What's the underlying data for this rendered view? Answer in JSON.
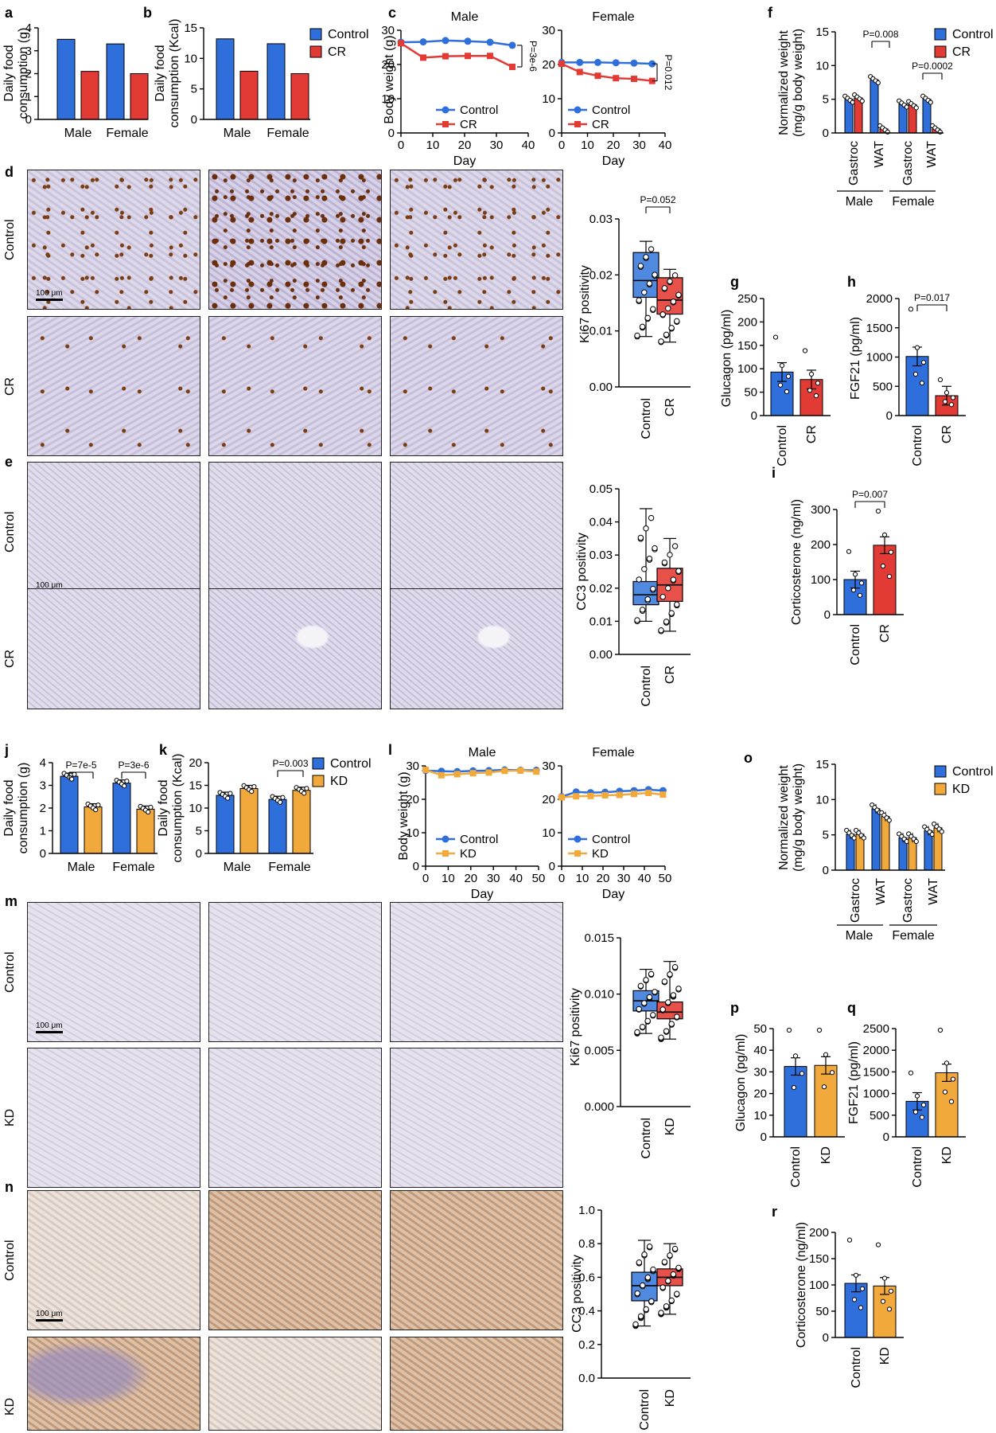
{
  "colors": {
    "control": "#2f6fdb",
    "cr": "#e23b36",
    "kd": "#f2a93b",
    "box_ctrl": "#4f8ae0",
    "box_cr": "#e8504a"
  },
  "panel_letters": [
    "a",
    "b",
    "c",
    "d",
    "e",
    "f",
    "g",
    "h",
    "i",
    "j",
    "k",
    "l",
    "m",
    "n",
    "o",
    "p",
    "q",
    "r"
  ],
  "row_labels": {
    "d": [
      "Control",
      "CR"
    ],
    "e": [
      "Control",
      "CR"
    ],
    "m": [
      "Control",
      "KD"
    ],
    "n": [
      "Control",
      "KD"
    ]
  },
  "scale_bar": "100 μm",
  "chart_data": [
    {
      "id": "a",
      "type": "bar",
      "categories": [
        "Male",
        "Female"
      ],
      "series": [
        {
          "name": "Control",
          "values": [
            3.5,
            3.3
          ]
        },
        {
          "name": "CR",
          "values": [
            2.1,
            2.0
          ]
        }
      ],
      "ylabel": "Daily food consumption (g)",
      "ylim": [
        0,
        4
      ],
      "yticks": [
        0,
        1,
        2,
        3,
        4
      ]
    },
    {
      "id": "b",
      "type": "bar",
      "categories": [
        "Male",
        "Female"
      ],
      "series": [
        {
          "name": "Control",
          "values": [
            13.2,
            12.4
          ]
        },
        {
          "name": "CR",
          "values": [
            7.9,
            7.5
          ]
        }
      ],
      "ylabel": "Daily food consumption (Kcal)",
      "ylim": [
        0,
        15
      ],
      "yticks": [
        0,
        5,
        10,
        15
      ],
      "legend": [
        "Control",
        "CR"
      ]
    },
    {
      "id": "c1",
      "type": "line",
      "title": "Male",
      "x": [
        0,
        7,
        14,
        21,
        28,
        35
      ],
      "series": [
        {
          "name": "Control",
          "values": [
            26.5,
            26.6,
            27.0,
            26.8,
            26.5,
            25.6
          ]
        },
        {
          "name": "CR",
          "values": [
            26.2,
            22.0,
            22.4,
            22.5,
            22.5,
            19.3
          ]
        }
      ],
      "ylabel": "Body weight (g)",
      "xlabel": "Day",
      "xlim": [
        0,
        40
      ],
      "ylim": [
        0,
        30
      ],
      "xticks": [
        0,
        10,
        20,
        30,
        40
      ],
      "yticks": [
        0,
        10,
        20,
        30
      ],
      "annotation": "P=3e-6"
    },
    {
      "id": "c2",
      "type": "line",
      "title": "Female",
      "x": [
        0,
        7,
        14,
        21,
        28,
        35
      ],
      "series": [
        {
          "name": "Control",
          "values": [
            20.6,
            20.6,
            20.6,
            20.5,
            20.4,
            20.2
          ]
        },
        {
          "name": "CR",
          "values": [
            20.2,
            17.8,
            16.7,
            16.0,
            15.8,
            15.2
          ]
        }
      ],
      "xlabel": "Day",
      "xlim": [
        0,
        40
      ],
      "ylim": [
        0,
        30
      ],
      "xticks": [
        0,
        10,
        20,
        30,
        40
      ],
      "yticks": [
        0,
        10,
        20,
        30
      ],
      "annotation": "P=0.012"
    },
    {
      "id": "d",
      "type": "box",
      "categories": [
        "Control",
        "CR"
      ],
      "ylabel": "Ki67 positivity",
      "ylim": [
        0,
        0.03
      ],
      "yticks": [
        "0.00",
        "0.01",
        "0.02",
        "0.03"
      ],
      "annotation": "P=0.052",
      "boxes": [
        {
          "min": 0.009,
          "q1": 0.016,
          "median": 0.019,
          "q3": 0.024,
          "max": 0.026
        },
        {
          "min": 0.008,
          "q1": 0.013,
          "median": 0.0155,
          "q3": 0.0195,
          "max": 0.021
        }
      ]
    },
    {
      "id": "e",
      "type": "box",
      "categories": [
        "Control",
        "CR"
      ],
      "ylabel": "CC3 positivity",
      "ylim": [
        0,
        0.05
      ],
      "yticks": [
        "0.00",
        "0.01",
        "0.02",
        "0.03",
        "0.04",
        "0.05"
      ],
      "boxes": [
        {
          "min": 0.01,
          "q1": 0.015,
          "median": 0.018,
          "q3": 0.022,
          "max": 0.044
        },
        {
          "min": 0.007,
          "q1": 0.016,
          "median": 0.021,
          "q3": 0.026,
          "max": 0.035
        }
      ]
    },
    {
      "id": "f",
      "type": "bar",
      "categories": [
        "Gastroc",
        "WAT",
        "Gastroc",
        "WAT"
      ],
      "groups": [
        "Male",
        "Female"
      ],
      "series": [
        {
          "name": "Control",
          "values": [
            5.0,
            7.9,
            4.3,
            5.0
          ]
        },
        {
          "name": "CR",
          "values": [
            5.2,
            0.6,
            4.2,
            0.6
          ]
        }
      ],
      "ylabel": "Normalized weight (mg/g body weight)",
      "ylim": [
        0,
        15
      ],
      "yticks": [
        0,
        5,
        10,
        15
      ],
      "legend": [
        "Control",
        "CR"
      ],
      "annotations": [
        "P=0.008",
        "P=0.0002"
      ]
    },
    {
      "id": "g",
      "type": "bar",
      "categories": [
        "Control",
        "CR"
      ],
      "values": [
        93,
        77
      ],
      "ylabel": "Glucagon (pg/ml)",
      "ylim": [
        0,
        250
      ],
      "yticks": [
        0,
        50,
        100,
        150,
        200,
        250
      ]
    },
    {
      "id": "h",
      "type": "bar",
      "categories": [
        "Control",
        "CR"
      ],
      "values": [
        1010,
        340
      ],
      "ylabel": "FGF21 (pg/ml)",
      "ylim": [
        0,
        2000
      ],
      "yticks": [
        0,
        500,
        1000,
        1500,
        2000
      ],
      "annotation": "P=0.017"
    },
    {
      "id": "i",
      "type": "bar",
      "categories": [
        "Control",
        "CR"
      ],
      "values": [
        100,
        198
      ],
      "ylabel": "Corticosterone (ng/ml)",
      "ylim": [
        0,
        300
      ],
      "yticks": [
        0,
        100,
        200,
        300
      ],
      "annotation": "P=0.007"
    },
    {
      "id": "j",
      "type": "bar",
      "categories": [
        "Male",
        "Female"
      ],
      "series": [
        {
          "name": "Control",
          "values": [
            3.4,
            3.1
          ]
        },
        {
          "name": "KD",
          "values": [
            2.05,
            1.95
          ]
        }
      ],
      "ylabel": "Daily food consumption (g)",
      "ylim": [
        0,
        4
      ],
      "yticks": [
        0,
        1,
        2,
        3,
        4
      ],
      "annotations": [
        "P=7e-5",
        "P=3e-6"
      ]
    },
    {
      "id": "k",
      "type": "bar",
      "categories": [
        "Male",
        "Female"
      ],
      "series": [
        {
          "name": "Control",
          "values": [
            12.8,
            11.9
          ]
        },
        {
          "name": "KD",
          "values": [
            14.3,
            13.9
          ]
        }
      ],
      "ylabel": "Daily food consumption (Kcal)",
      "ylim": [
        0,
        20
      ],
      "yticks": [
        0,
        5,
        10,
        15,
        20
      ],
      "legend": [
        "Control",
        "KD"
      ],
      "annotation": "P=0.003"
    },
    {
      "id": "l1",
      "type": "line",
      "title": "Male",
      "x": [
        0,
        7,
        14,
        21,
        28,
        35,
        42,
        49
      ],
      "series": [
        {
          "name": "Control",
          "values": [
            28.6,
            28.4,
            28.3,
            28.5,
            28.6,
            28.8,
            28.7,
            28.7
          ]
        },
        {
          "name": "KD",
          "values": [
            28.8,
            27.2,
            27.5,
            27.8,
            28.0,
            28.5,
            28.6,
            28.3
          ]
        }
      ],
      "ylabel": "Body weight (g)",
      "xlabel": "Day",
      "xlim": [
        0,
        50
      ],
      "ylim": [
        0,
        30
      ],
      "xticks": [
        0,
        10,
        20,
        30,
        40,
        50
      ],
      "yticks": [
        0,
        10,
        20,
        30
      ]
    },
    {
      "id": "l2",
      "type": "line",
      "title": "Female",
      "x": [
        0,
        7,
        14,
        21,
        28,
        35,
        42,
        49
      ],
      "series": [
        {
          "name": "Control",
          "values": [
            20.8,
            22.2,
            22.0,
            22.1,
            22.4,
            22.6,
            22.9,
            22.6
          ]
        },
        {
          "name": "KD",
          "values": [
            20.6,
            20.9,
            21.0,
            21.2,
            21.3,
            21.6,
            21.9,
            21.4
          ]
        }
      ],
      "xlabel": "Day",
      "xlim": [
        0,
        50
      ],
      "ylim": [
        0,
        30
      ],
      "xticks": [
        0,
        10,
        20,
        30,
        40,
        50
      ],
      "yticks": [
        0,
        10,
        20,
        30
      ]
    },
    {
      "id": "m",
      "type": "box",
      "categories": [
        "Control",
        "KD"
      ],
      "ylabel": "Ki67 positivity",
      "ylim": [
        0,
        0.015
      ],
      "yticks": [
        "0.000",
        "0.005",
        "0.010",
        "0.015"
      ],
      "boxes": [
        {
          "min": 0.0065,
          "q1": 0.0085,
          "median": 0.0094,
          "q3": 0.0103,
          "max": 0.0122
        },
        {
          "min": 0.006,
          "q1": 0.0078,
          "median": 0.0084,
          "q3": 0.0093,
          "max": 0.0129
        }
      ]
    },
    {
      "id": "n",
      "type": "box",
      "categories": [
        "Control",
        "KD"
      ],
      "ylabel": "CC3 positivity",
      "ylim": [
        0,
        1.0
      ],
      "yticks": [
        "0.0",
        "0.2",
        "0.4",
        "0.6",
        "0.8",
        "1.0"
      ],
      "boxes": [
        {
          "min": 0.31,
          "q1": 0.46,
          "median": 0.55,
          "q3": 0.63,
          "max": 0.82
        },
        {
          "min": 0.38,
          "q1": 0.55,
          "median": 0.6,
          "q3": 0.65,
          "max": 0.8
        }
      ]
    },
    {
      "id": "o",
      "type": "bar",
      "categories": [
        "Gastroc",
        "WAT",
        "Gastroc",
        "WAT"
      ],
      "groups": [
        "Male",
        "Female"
      ],
      "series": [
        {
          "name": "Control",
          "values": [
            5.1,
            8.7,
            4.6,
            5.6
          ]
        },
        {
          "name": "KD",
          "values": [
            5.1,
            7.6,
            4.6,
            6.0
          ]
        }
      ],
      "ylabel": "Normalized weight (mg/g body weight)",
      "ylim": [
        0,
        15
      ],
      "yticks": [
        0,
        5,
        10,
        15
      ],
      "legend": [
        "Control",
        "KD"
      ]
    },
    {
      "id": "p",
      "type": "bar",
      "categories": [
        "Control",
        "KD"
      ],
      "values": [
        32.5,
        33.0
      ],
      "ylabel": "Glucagon (pg/ml)",
      "ylim": [
        0,
        50
      ],
      "yticks": [
        0,
        10,
        20,
        30,
        40,
        50
      ]
    },
    {
      "id": "q",
      "type": "bar",
      "categories": [
        "Control",
        "KD"
      ],
      "values": [
        820,
        1480
      ],
      "ylabel": "FGF21 (pg/ml)",
      "ylim": [
        0,
        2500
      ],
      "yticks": [
        0,
        500,
        1000,
        1500,
        2000,
        2500
      ]
    },
    {
      "id": "r",
      "type": "bar",
      "categories": [
        "Control",
        "KD"
      ],
      "values": [
        103,
        98
      ],
      "ylabel": "Corticosterone (ng/ml)",
      "ylim": [
        0,
        200
      ],
      "yticks": [
        0,
        50,
        100,
        150,
        200
      ]
    }
  ]
}
